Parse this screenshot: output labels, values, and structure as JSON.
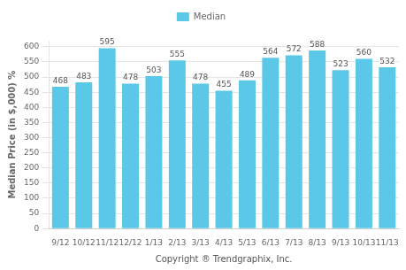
{
  "chart_data": {
    "type": "bar",
    "categories": [
      "9/12",
      "10/12",
      "11/12",
      "12/12",
      "1/13",
      "2/13",
      "3/13",
      "4/13",
      "5/13",
      "6/13",
      "7/13",
      "8/13",
      "9/13",
      "10/13",
      "11/13"
    ],
    "series": [
      {
        "name": "Median",
        "color": "#5BC8E8",
        "values": [
          468,
          483,
          595,
          478,
          503,
          555,
          478,
          455,
          489,
          564,
          572,
          588,
          523,
          560,
          532
        ]
      }
    ],
    "ylabel": "Median Price (in $,000) %",
    "xlabel": "Copyright ® Trendgraphix, Inc.",
    "ylim": [
      0,
      620
    ],
    "yticks": [
      0,
      50,
      100,
      150,
      200,
      250,
      300,
      350,
      400,
      450,
      500,
      550,
      600
    ],
    "grid": true,
    "legend": "top",
    "data_labels": true
  }
}
